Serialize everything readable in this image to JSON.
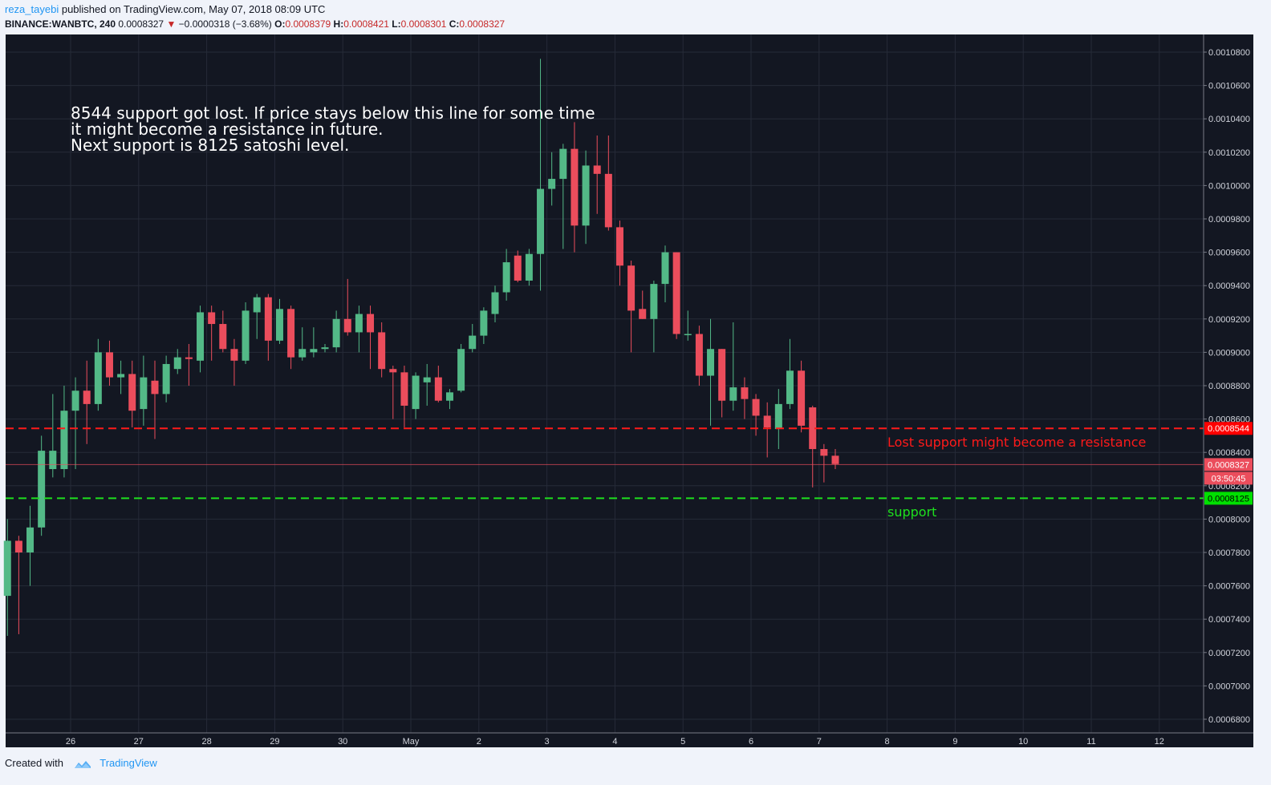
{
  "header": {
    "author": "reza_tayebi",
    "published": "published on TradingView.com, May 07, 2018 08:09 UTC",
    "symbol": "BINANCE:WANBTC, 240",
    "last": "0.0008327",
    "change": "−0.0000318 (−3.68%)",
    "o_label": "O:",
    "o_value": "0.0008379",
    "h_label": "H:",
    "h_value": "0.0008421",
    "l_label": "L:",
    "l_value": "0.0008301",
    "c_label": "C:",
    "c_value": "0.0008327"
  },
  "footer": {
    "created_with": "Created with",
    "brand": "TradingView"
  },
  "colors": {
    "background": "#131722",
    "grid": "#262b38",
    "up": "#53b987",
    "down": "#eb4d5c",
    "resistance": "#ff1a1a",
    "support": "#1ee01e",
    "axis_text": "#d1d4dc"
  },
  "chart_data": {
    "type": "candlestick",
    "y_ticks": [
      "0.0006800",
      "0.0007000",
      "0.0007200",
      "0.0007400",
      "0.0007600",
      "0.0007800",
      "0.0008000",
      "0.0008200",
      "0.0008400",
      "0.0008600",
      "0.0008800",
      "0.0009000",
      "0.0009200",
      "0.0009400",
      "0.0009600",
      "0.0009800",
      "0.0010000",
      "0.0010200",
      "0.0010400",
      "0.0010600",
      "0.0010800"
    ],
    "ylim": [
      0.00066,
      0.0011
    ],
    "x_tick_labels": [
      "26",
      "27",
      "28",
      "29",
      "30",
      "May",
      "2",
      "3",
      "4",
      "5",
      "6",
      "7",
      "8",
      "9",
      "10",
      "11",
      "12"
    ],
    "x_start_day": 25.0,
    "bars_per_day": 6,
    "candles": [
      {
        "o": 0.000754,
        "h": 0.0008,
        "l": 0.00073,
        "c": 0.000787
      },
      {
        "o": 0.000787,
        "h": 0.00079,
        "l": 0.000731,
        "c": 0.00078
      },
      {
        "o": 0.00078,
        "h": 0.000808,
        "l": 0.00076,
        "c": 0.000795
      },
      {
        "o": 0.000795,
        "h": 0.00085,
        "l": 0.00079,
        "c": 0.000841
      },
      {
        "o": 0.00083,
        "h": 0.000875,
        "l": 0.000825,
        "c": 0.000841
      },
      {
        "o": 0.00083,
        "h": 0.00088,
        "l": 0.000825,
        "c": 0.000865
      },
      {
        "o": 0.000865,
        "h": 0.000885,
        "l": 0.00083,
        "c": 0.000877
      },
      {
        "o": 0.000877,
        "h": 0.000895,
        "l": 0.000845,
        "c": 0.000869
      },
      {
        "o": 0.000869,
        "h": 0.000908,
        "l": 0.000865,
        "c": 0.0009
      },
      {
        "o": 0.0009,
        "h": 0.000907,
        "l": 0.00088,
        "c": 0.000885
      },
      {
        "o": 0.000885,
        "h": 0.000895,
        "l": 0.000875,
        "c": 0.000887
      },
      {
        "o": 0.000887,
        "h": 0.000895,
        "l": 0.000855,
        "c": 0.000865
      },
      {
        "o": 0.000866,
        "h": 0.000898,
        "l": 0.000856,
        "c": 0.000885
      },
      {
        "o": 0.000883,
        "h": 0.000895,
        "l": 0.000848,
        "c": 0.000875
      },
      {
        "o": 0.000875,
        "h": 0.000898,
        "l": 0.00087,
        "c": 0.000893
      },
      {
        "o": 0.00089,
        "h": 0.000902,
        "l": 0.000887,
        "c": 0.000897
      },
      {
        "o": 0.000897,
        "h": 0.000905,
        "l": 0.00088,
        "c": 0.000896
      },
      {
        "o": 0.000895,
        "h": 0.000928,
        "l": 0.000888,
        "c": 0.000924
      },
      {
        "o": 0.000924,
        "h": 0.000928,
        "l": 0.000895,
        "c": 0.000917
      },
      {
        "o": 0.000917,
        "h": 0.000925,
        "l": 0.0009,
        "c": 0.000902
      },
      {
        "o": 0.000902,
        "h": 0.000908,
        "l": 0.00088,
        "c": 0.000895
      },
      {
        "o": 0.000895,
        "h": 0.00093,
        "l": 0.000893,
        "c": 0.000925
      },
      {
        "o": 0.000924,
        "h": 0.000935,
        "l": 0.000908,
        "c": 0.000933
      },
      {
        "o": 0.000933,
        "h": 0.000935,
        "l": 0.000895,
        "c": 0.000907
      },
      {
        "o": 0.000907,
        "h": 0.000932,
        "l": 0.000905,
        "c": 0.000926
      },
      {
        "o": 0.000926,
        "h": 0.000928,
        "l": 0.00089,
        "c": 0.000897
      },
      {
        "o": 0.000897,
        "h": 0.000915,
        "l": 0.000895,
        "c": 0.000902
      },
      {
        "o": 0.0009,
        "h": 0.000915,
        "l": 0.000897,
        "c": 0.000902
      },
      {
        "o": 0.000902,
        "h": 0.000905,
        "l": 0.0009,
        "c": 0.000903
      },
      {
        "o": 0.000903,
        "h": 0.000925,
        "l": 0.0009,
        "c": 0.00092
      },
      {
        "o": 0.00092,
        "h": 0.000944,
        "l": 0.00091,
        "c": 0.000912
      },
      {
        "o": 0.000912,
        "h": 0.000928,
        "l": 0.0009,
        "c": 0.000923
      },
      {
        "o": 0.000923,
        "h": 0.000928,
        "l": 0.00089,
        "c": 0.000912
      },
      {
        "o": 0.000912,
        "h": 0.000918,
        "l": 0.000885,
        "c": 0.00089
      },
      {
        "o": 0.00089,
        "h": 0.000892,
        "l": 0.00086,
        "c": 0.000888
      },
      {
        "o": 0.000888,
        "h": 0.000892,
        "l": 0.000855,
        "c": 0.000868
      },
      {
        "o": 0.000866,
        "h": 0.000888,
        "l": 0.00086,
        "c": 0.000886
      },
      {
        "o": 0.000882,
        "h": 0.000893,
        "l": 0.000868,
        "c": 0.000885
      },
      {
        "o": 0.000885,
        "h": 0.000892,
        "l": 0.00087,
        "c": 0.000871
      },
      {
        "o": 0.000871,
        "h": 0.000878,
        "l": 0.000866,
        "c": 0.000876
      },
      {
        "o": 0.000877,
        "h": 0.000905,
        "l": 0.000876,
        "c": 0.000902
      },
      {
        "o": 0.000902,
        "h": 0.000917,
        "l": 0.0009,
        "c": 0.00091
      },
      {
        "o": 0.00091,
        "h": 0.000927,
        "l": 0.000905,
        "c": 0.000925
      },
      {
        "o": 0.000923,
        "h": 0.00094,
        "l": 0.000918,
        "c": 0.000936
      },
      {
        "o": 0.000936,
        "h": 0.000962,
        "l": 0.000931,
        "c": 0.000954
      },
      {
        "o": 0.000958,
        "h": 0.000961,
        "l": 0.000942,
        "c": 0.000943
      },
      {
        "o": 0.000943,
        "h": 0.000962,
        "l": 0.00094,
        "c": 0.000959
      },
      {
        "o": 0.000959,
        "h": 0.001076,
        "l": 0.000937,
        "c": 0.000998
      },
      {
        "o": 0.000998,
        "h": 0.00102,
        "l": 0.000988,
        "c": 0.001004
      },
      {
        "o": 0.001004,
        "h": 0.001025,
        "l": 0.000962,
        "c": 0.001022
      },
      {
        "o": 0.001022,
        "h": 0.001038,
        "l": 0.00096,
        "c": 0.000976
      },
      {
        "o": 0.000976,
        "h": 0.001021,
        "l": 0.000965,
        "c": 0.001012
      },
      {
        "o": 0.001012,
        "h": 0.00103,
        "l": 0.000983,
        "c": 0.001007
      },
      {
        "o": 0.001007,
        "h": 0.00103,
        "l": 0.000973,
        "c": 0.000975
      },
      {
        "o": 0.000975,
        "h": 0.000979,
        "l": 0.00094,
        "c": 0.000952
      },
      {
        "o": 0.000952,
        "h": 0.000955,
        "l": 0.0009,
        "c": 0.000925
      },
      {
        "o": 0.000926,
        "h": 0.000937,
        "l": 0.00092,
        "c": 0.00092
      },
      {
        "o": 0.00092,
        "h": 0.000943,
        "l": 0.0009,
        "c": 0.000941
      },
      {
        "o": 0.000941,
        "h": 0.000964,
        "l": 0.00093,
        "c": 0.00096
      },
      {
        "o": 0.00096,
        "h": 0.00096,
        "l": 0.000908,
        "c": 0.000911
      },
      {
        "o": 0.000911,
        "h": 0.000925,
        "l": 0.000907,
        "c": 0.000911
      },
      {
        "o": 0.000911,
        "h": 0.000916,
        "l": 0.00088,
        "c": 0.000886
      },
      {
        "o": 0.000886,
        "h": 0.00092,
        "l": 0.000856,
        "c": 0.000902
      },
      {
        "o": 0.000902,
        "h": 0.000902,
        "l": 0.000861,
        "c": 0.000871
      },
      {
        "o": 0.000871,
        "h": 0.000918,
        "l": 0.000865,
        "c": 0.000879
      },
      {
        "o": 0.000879,
        "h": 0.000885,
        "l": 0.00086,
        "c": 0.000872
      },
      {
        "o": 0.000872,
        "h": 0.000875,
        "l": 0.00085,
        "c": 0.000862
      },
      {
        "o": 0.000862,
        "h": 0.00087,
        "l": 0.000837,
        "c": 0.000855
      },
      {
        "o": 0.000854,
        "h": 0.000878,
        "l": 0.000842,
        "c": 0.000869
      },
      {
        "o": 0.000869,
        "h": 0.000908,
        "l": 0.000866,
        "c": 0.000889
      },
      {
        "o": 0.000889,
        "h": 0.000895,
        "l": 0.000852,
        "c": 0.000856
      },
      {
        "o": 0.000867,
        "h": 0.000868,
        "l": 0.000819,
        "c": 0.000842
      },
      {
        "o": 0.000842,
        "h": 0.000845,
        "l": 0.000822,
        "c": 0.000838
      },
      {
        "o": 0.000838,
        "h": 0.000842,
        "l": 0.00083,
        "c": 0.000833
      }
    ],
    "resistance_level": 0.0008544,
    "support_level": 0.0008125,
    "current_price": 0.0008327,
    "resistance_label": "0.0008544",
    "support_label": "0.0008125",
    "current_label": "0.0008327",
    "countdown": "03:50:45",
    "annotation_lines": [
      "8544 support got lost. If price stays below this line for some time",
      "it might become a resistance in future.",
      "Next support is 8125 satoshi level."
    ],
    "resistance_text": "Lost support might become a resistance",
    "support_text": "support"
  }
}
